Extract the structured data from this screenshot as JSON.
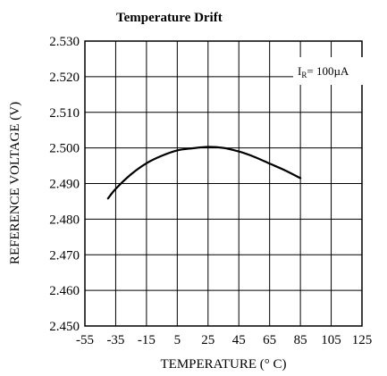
{
  "chart_data": {
    "type": "line",
    "title": "Temperature Drift",
    "xlabel": "TEMPERATURE (° C)",
    "ylabel": "REFERENCE VOLTAGE (V)",
    "xlim": [
      -55,
      125
    ],
    "ylim": [
      2.45,
      2.53
    ],
    "x_ticks": [
      "-55",
      "-35",
      "-15",
      "5",
      "25",
      "45",
      "65",
      "85",
      "105",
      "125"
    ],
    "y_ticks": [
      "2.450",
      "2.460",
      "2.470",
      "2.480",
      "2.490",
      "2.500",
      "2.510",
      "2.520",
      "2.530"
    ],
    "grid": true,
    "annotation": {
      "main": "I",
      "sub": "R",
      "rest": "= 100µA"
    },
    "series": [
      {
        "x": [
          -40,
          -35,
          -25,
          -15,
          -5,
          5,
          15,
          25,
          35,
          45,
          55,
          65,
          75,
          85
        ],
        "y": [
          2.4858,
          2.4885,
          2.4926,
          2.4957,
          2.4978,
          2.4993,
          2.4999,
          2.5003,
          2.5,
          2.499,
          2.4975,
          2.4956,
          2.4937,
          2.4915
        ]
      }
    ]
  }
}
